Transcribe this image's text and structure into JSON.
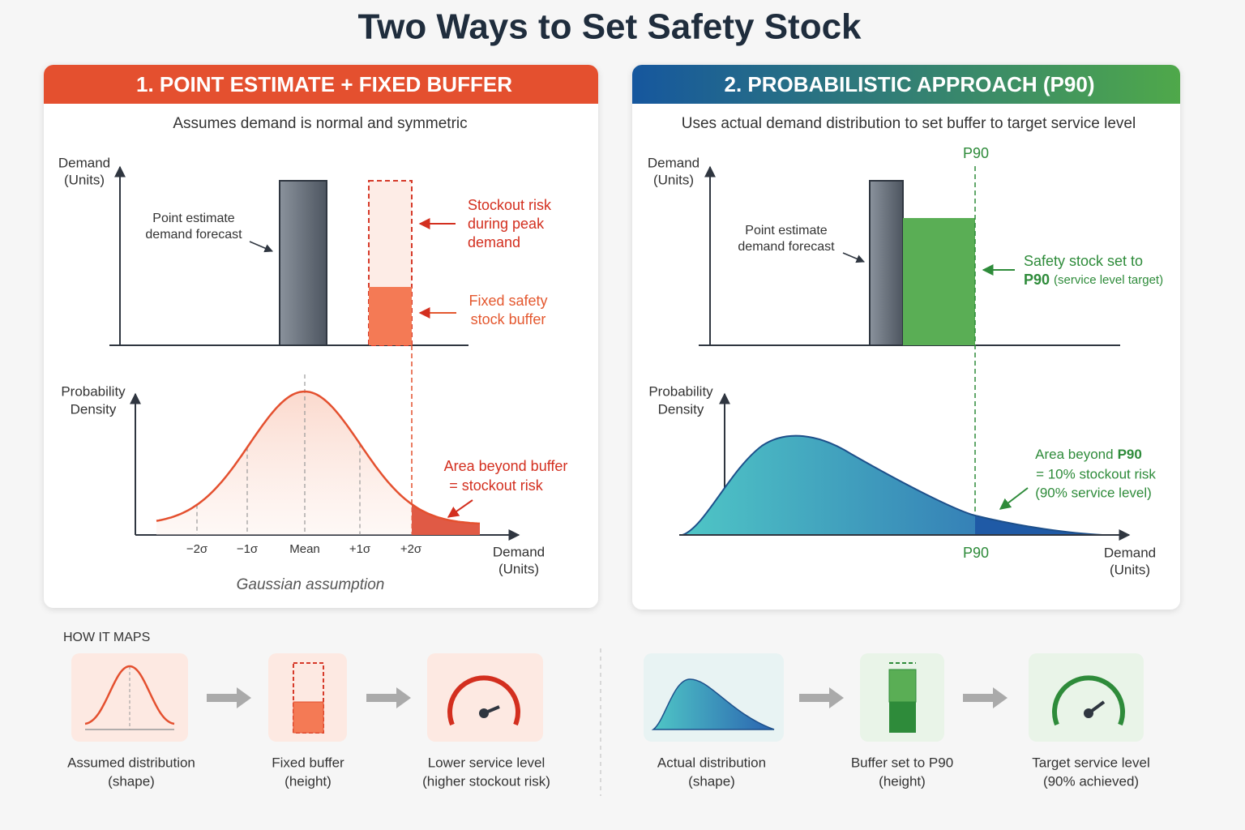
{
  "title": "Two Ways to Set Safety Stock",
  "panels": [
    {
      "header": "1. POINT ESTIMATE + FIXED BUFFER",
      "subtitle": "Assumes demand is normal and symmetric",
      "demand_axis_label": [
        "Demand",
        "(Units)"
      ],
      "forecast_note": [
        "Point estimate",
        "demand forecast"
      ],
      "stockout_note": [
        "Stockout risk",
        "during peak",
        "demand"
      ],
      "buffer_note": [
        "Fixed safety",
        "stock buffer"
      ],
      "density_axis_label": [
        "Probability",
        "Density"
      ],
      "tail_note": [
        "Area beyond buffer",
        "= stockout risk"
      ],
      "x_ticks": [
        "−2σ",
        "−1σ",
        "Mean",
        "+1σ",
        "+2σ"
      ],
      "x_axis_label": [
        "Demand",
        "(Units)"
      ],
      "caption": "Gaussian assumption"
    },
    {
      "header": "2. PROBABILISTIC APPROACH (P90)",
      "subtitle": "Uses actual demand distribution to set buffer to target service level",
      "p90_marker": "P90",
      "demand_axis_label": [
        "Demand",
        "(Units)"
      ],
      "forecast_note": [
        "Point estimate",
        "demand forecast"
      ],
      "buffer_note": [
        "Safety stock set to",
        "P90",
        "(service level target)"
      ],
      "density_axis_label": [
        "Probability",
        "Density"
      ],
      "tail_note": [
        "Area beyond",
        "P90",
        "= 10% stockout risk",
        "(90% service level)"
      ],
      "x_tick": "P90",
      "x_axis_label": [
        "Demand",
        "(Units)"
      ]
    }
  ],
  "how_it_maps": {
    "heading": "HOW IT MAPS",
    "steps": [
      {
        "label": [
          "Assumed distribution",
          "(shape)"
        ]
      },
      {
        "label": [
          "Fixed buffer",
          "(height)"
        ]
      },
      {
        "label": [
          "Lower service level",
          "(higher stockout risk)"
        ]
      },
      {
        "label": [
          "Actual distribution",
          "(shape)"
        ]
      },
      {
        "label": [
          "Buffer set to P90",
          "(height)"
        ]
      },
      {
        "label": [
          "Target service level",
          "(90% achieved)"
        ]
      }
    ]
  }
}
